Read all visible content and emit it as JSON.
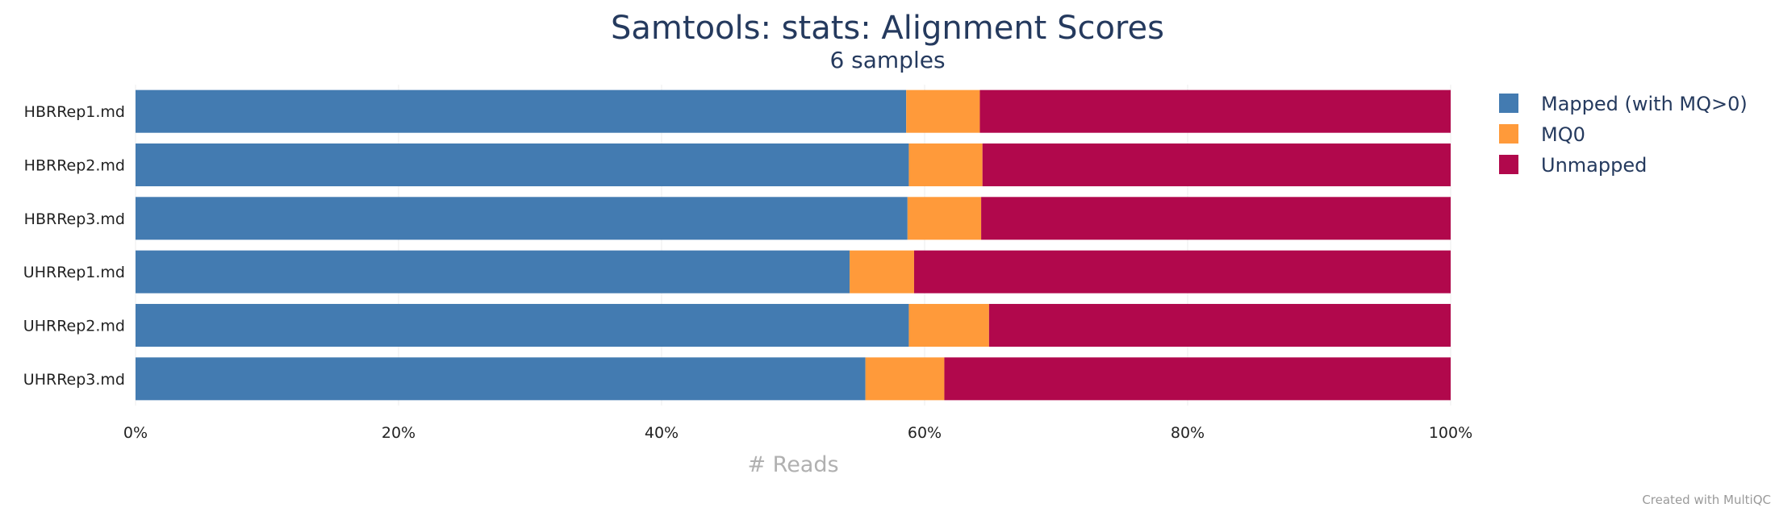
{
  "chart_data": {
    "type": "bar",
    "orientation": "horizontal",
    "stacked": true,
    "title": "Samtools: stats: Alignment Scores",
    "subtitle": "6 samples",
    "xlabel": "# Reads",
    "ylabel": "",
    "xlim": [
      0,
      100
    ],
    "xticks": [
      "0%",
      "20%",
      "40%",
      "60%",
      "80%",
      "100%"
    ],
    "grid": "vertical",
    "legend_position": "right",
    "categories": [
      "HBRRep1.md",
      "HBRRep2.md",
      "HBRRep3.md",
      "UHRRep1.md",
      "UHRRep2.md",
      "UHRRep3.md"
    ],
    "series": [
      {
        "name": "Mapped (with MQ>0)",
        "color": "#437bb1",
        "values": [
          58.6,
          58.8,
          58.7,
          54.3,
          58.8,
          55.5
        ]
      },
      {
        "name": "MQ0",
        "color": "#ff9a3a",
        "values": [
          5.6,
          5.6,
          5.6,
          4.9,
          6.1,
          6.0
        ]
      },
      {
        "name": "Unmapped",
        "color": "#b1084c",
        "values": [
          35.8,
          35.6,
          35.7,
          40.8,
          35.1,
          38.5
        ]
      }
    ]
  },
  "footer": {
    "credit": "Created with MultiQC"
  }
}
